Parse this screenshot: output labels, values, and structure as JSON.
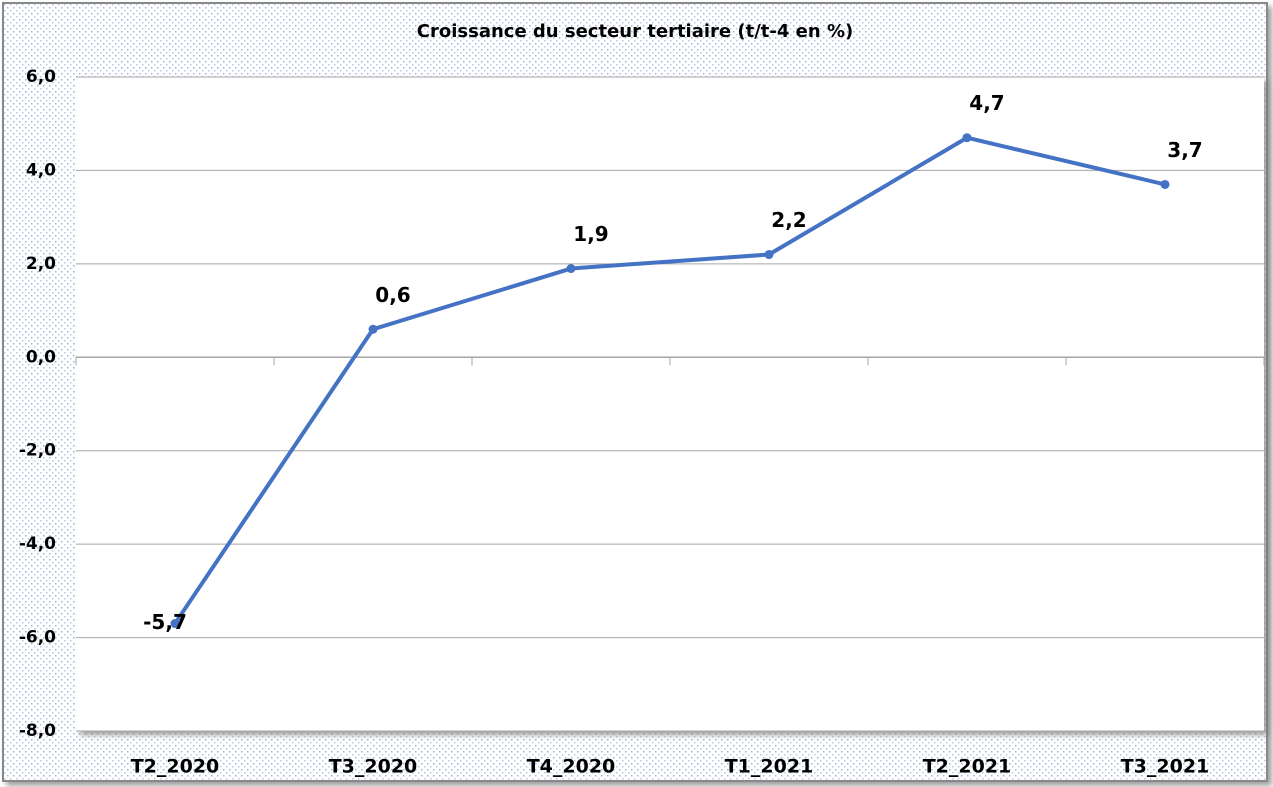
{
  "chart_data": {
    "type": "line",
    "title": "Croissance du secteur tertiaire (t/t-4 en %)",
    "categories": [
      "T2_2020",
      "T3_2020",
      "T4_2020",
      "T1_2021",
      "T2_2021",
      "T3_2021"
    ],
    "series": [
      {
        "color": "#4472c4",
        "values": [
          -5.7,
          0.6,
          1.9,
          2.2,
          4.7,
          3.7
        ],
        "value_labels": [
          "-5,7",
          "0,6",
          "1,9",
          "2,2",
          "4,7",
          "3,7"
        ]
      }
    ],
    "ylim": [
      -8,
      6
    ],
    "yticks": [
      {
        "value": -8,
        "label": "-8,0"
      },
      {
        "value": -6,
        "label": "-6,0"
      },
      {
        "value": -4,
        "label": "-4,0"
      },
      {
        "value": -2,
        "label": "-2,0"
      },
      {
        "value": 0,
        "label": "0,0"
      },
      {
        "value": 2,
        "label": "2,0"
      },
      {
        "value": 4,
        "label": "4,0"
      },
      {
        "value": 6,
        "label": "6,0"
      }
    ],
    "grid": true
  }
}
